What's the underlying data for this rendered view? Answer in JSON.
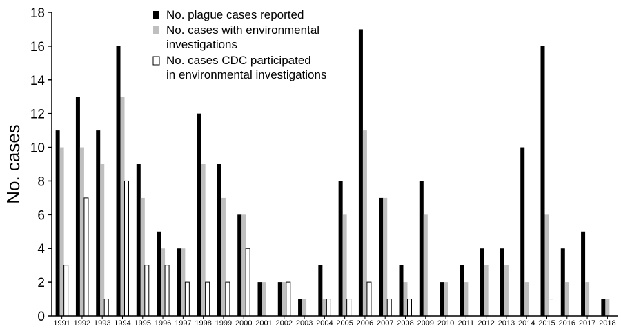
{
  "chart_data": {
    "type": "bar",
    "ylabel": "No. cases",
    "xlabel": "",
    "ylim": [
      0,
      18
    ],
    "yticks": [
      0,
      2,
      4,
      6,
      8,
      10,
      12,
      14,
      16,
      18
    ],
    "grid": false,
    "legend_position": "top-center",
    "categories": [
      "1991",
      "1992",
      "1993",
      "1994",
      "1995",
      "1996",
      "1997",
      "1998",
      "1999",
      "2000",
      "2001",
      "2002",
      "2003",
      "2004",
      "2005",
      "2006",
      "2007",
      "2008",
      "2009",
      "2010",
      "2011",
      "2012",
      "2013",
      "2014",
      "2015",
      "2016",
      "2017",
      "2018"
    ],
    "series": [
      {
        "name": "No. plague cases reported",
        "color": "#000000",
        "values": [
          11,
          13,
          11,
          16,
          9,
          5,
          4,
          12,
          9,
          6,
          2,
          2,
          1,
          3,
          8,
          17,
          7,
          3,
          8,
          2,
          3,
          4,
          4,
          10,
          16,
          4,
          5,
          1
        ]
      },
      {
        "name": "No. cases with environmental",
        "name_line2": "investigations",
        "color": "#bfbfbf",
        "values": [
          10,
          10,
          9,
          13,
          7,
          4,
          4,
          9,
          7,
          6,
          2,
          2,
          1,
          1,
          6,
          11,
          7,
          2,
          6,
          2,
          2,
          3,
          3,
          2,
          6,
          2,
          2,
          1
        ]
      },
      {
        "name": "No. cases CDC participated",
        "name_line2": "in environmental investigations",
        "color": "#ffffff",
        "values": [
          3,
          7,
          1,
          8,
          3,
          3,
          2,
          2,
          2,
          4,
          0,
          2,
          0,
          1,
          1,
          2,
          1,
          1,
          0,
          0,
          0,
          0,
          0,
          0,
          1,
          0,
          0,
          0
        ]
      }
    ]
  }
}
